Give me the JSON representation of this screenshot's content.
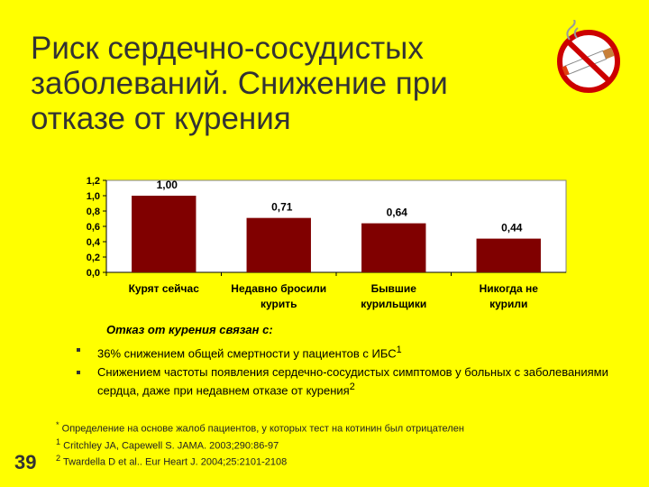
{
  "title_lines": [
    "Риск сердечно-сосудистых",
    "заболеваний. Снижение при",
    "отказе от курения"
  ],
  "icon": "no-smoking-icon",
  "colors": {
    "background": "#FFFF00",
    "bar": "#800000",
    "plot_bg": "#FFFFFF"
  },
  "chart_data": {
    "type": "bar",
    "categories": [
      [
        "Курят сейчас"
      ],
      [
        "Недавно бросили",
        "курить"
      ],
      [
        "Бывшие",
        "курильщики"
      ],
      [
        "Никогда не",
        "курили"
      ]
    ],
    "values": [
      1.0,
      0.71,
      0.64,
      0.44
    ],
    "data_labels": [
      "1,00",
      "0,71",
      "0,64",
      "0,44"
    ],
    "ylim": [
      0,
      1.2
    ],
    "yticks": [
      "0,0",
      "0,2",
      "0,4",
      "0,6",
      "0,8",
      "1,0",
      "1,2"
    ],
    "title": "",
    "xlabel": "",
    "ylabel": "",
    "grid": false
  },
  "caption": "Отказ от курения связан с:",
  "bullets": [
    {
      "text": "36% снижением общей смертности у пациентов с ИБС",
      "sup": "1"
    },
    {
      "text": "Снижением частоты появления сердечно-сосудистых симптомов у больных с заболеваниями сердца, даже при недавнем отказе от курения",
      "sup": "2"
    }
  ],
  "references": [
    {
      "mark": "*",
      "text": " Определение на основе жалоб пациентов, у которых тест на котинин был отрицателен"
    },
    {
      "mark": "1",
      "text": " Critchley JA, Capewell S. JAMA. 2003;290:86-97"
    },
    {
      "mark": "2",
      "text": " Twardella D et al.. Eur Heart J. 2004;25:2101-2108"
    }
  ],
  "slide_number": "39"
}
